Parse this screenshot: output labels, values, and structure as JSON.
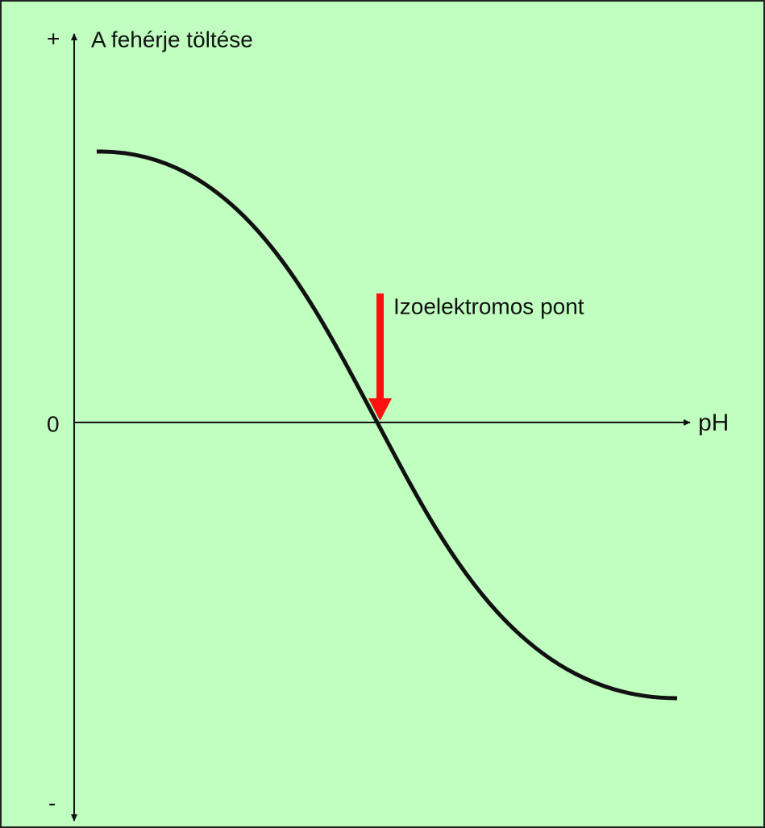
{
  "axis": {
    "y_label": "A fehérje töltése",
    "y_plus": "+",
    "y_minus": "-",
    "zero": "0",
    "x_label": "pH"
  },
  "annotation": "Izoelektromos pont"
}
